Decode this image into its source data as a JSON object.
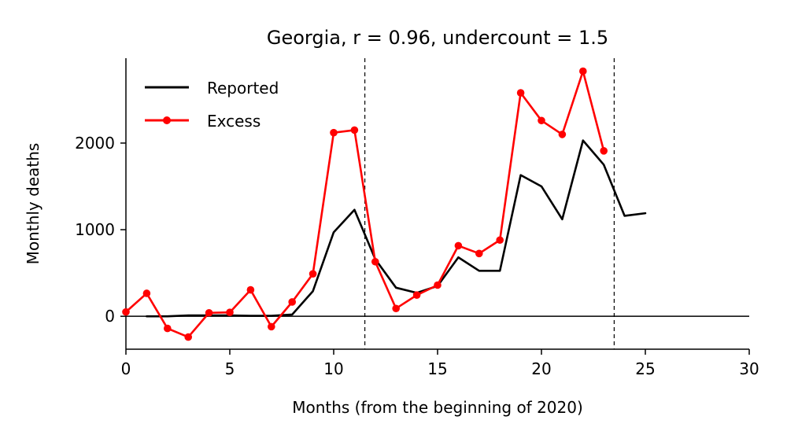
{
  "chart_data": {
    "type": "line",
    "title": "Georgia, r = 0.96, undercount = 1.5",
    "xlabel": "Months (from the beginning of 2020)",
    "ylabel": "Monthly deaths",
    "xlim": [
      0,
      30
    ],
    "ylim": [
      -380,
      2980
    ],
    "xticks": [
      0,
      5,
      10,
      15,
      20,
      25,
      30
    ],
    "yticks": [
      0,
      1000,
      2000
    ],
    "legend_position": "top-left",
    "zero_line": true,
    "vlines": [
      11.5,
      23.5
    ],
    "series": [
      {
        "name": "Reported",
        "color": "#000000",
        "marker": "none",
        "x": [
          1,
          2,
          3,
          4,
          5,
          6,
          7,
          8,
          9,
          10,
          11,
          12,
          13,
          14,
          15,
          16,
          17,
          18,
          19,
          20,
          21,
          22,
          23,
          24,
          25
        ],
        "y": [
          0,
          0,
          10,
          10,
          10,
          5,
          5,
          20,
          290,
          970,
          1230,
          660,
          330,
          270,
          350,
          680,
          525,
          525,
          1630,
          1500,
          1120,
          2030,
          1750,
          1160,
          1190
        ]
      },
      {
        "name": "Excess",
        "color": "#ff0000",
        "marker": "circle",
        "x": [
          0,
          1,
          2,
          3,
          4,
          5,
          6,
          7,
          8,
          9,
          10,
          11,
          12,
          13,
          14,
          15,
          16,
          17,
          18,
          19,
          20,
          21,
          22,
          23
        ],
        "y": [
          50,
          265,
          -140,
          -240,
          40,
          45,
          305,
          -120,
          165,
          490,
          2120,
          2150,
          630,
          90,
          245,
          360,
          815,
          725,
          880,
          2580,
          2260,
          2100,
          2830,
          1910
        ]
      }
    ]
  }
}
